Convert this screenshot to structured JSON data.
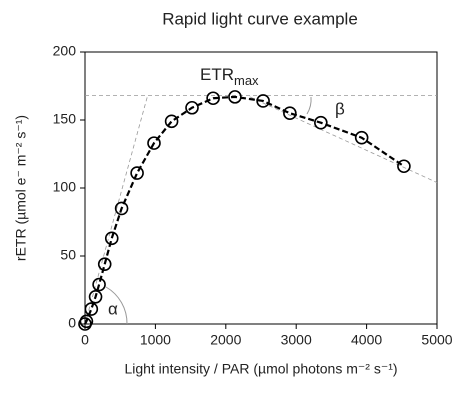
{
  "chart_data": {
    "type": "scatter",
    "title": "Rapid light curve example",
    "xlabel": "Light intensity / PAR (µmol photons m⁻² s⁻¹)",
    "ylabel": "rETR (µmol e⁻ m⁻² s⁻¹)",
    "annotations": [
      "ETR",
      "max",
      "α",
      "β"
    ],
    "x": [
      0,
      20,
      90,
      150,
      200,
      280,
      380,
      520,
      740,
      980,
      1230,
      1520,
      1820,
      2130,
      2530,
      2910,
      3350,
      3930,
      4530
    ],
    "values": [
      0,
      2,
      11,
      20,
      29,
      44,
      63,
      85,
      111,
      133,
      149,
      159,
      166,
      167,
      164,
      155,
      148,
      137,
      116
    ],
    "reference_lines": [
      {
        "x": [
          0,
          5000
        ],
        "y": [
          168,
          168
        ]
      },
      {
        "x": [
          0,
          890
        ],
        "y": [
          0,
          168
        ]
      },
      {
        "x": [
          2340,
          5000
        ],
        "y": [
          167,
          104
        ]
      }
    ],
    "xlim": [
      0,
      5000
    ],
    "xticks": [
      0,
      1000,
      2000,
      3000,
      4000,
      5000
    ],
    "ylim": [
      0,
      200
    ],
    "yticks": [
      0,
      50,
      100,
      150,
      200
    ]
  }
}
